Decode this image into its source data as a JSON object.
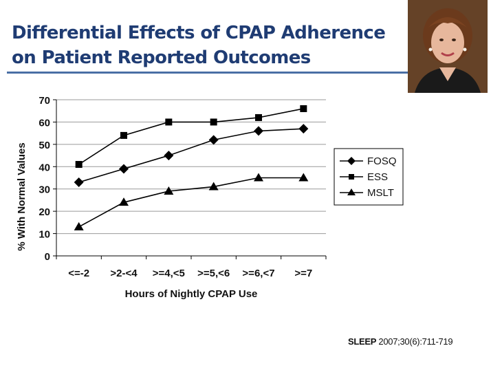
{
  "slide": {
    "title": "Differential Effects of CPAP Adherence on Patient Reported Outcomes",
    "citation_journal": "SLEEP",
    "citation_rest": " 2007;30(6):711-719"
  },
  "photo": {
    "icon": "portrait-photo",
    "description_colors": {
      "background": "#5a3a22",
      "hair": "#6b3a1c",
      "skin": "#e7b79c",
      "jacket": "#1a1a1a"
    }
  },
  "chart_data": {
    "type": "line",
    "categories": [
      "<=-2",
      ">2-<4",
      ">=4,<5",
      ">=5,<6",
      ">=6,<7",
      ">=7"
    ],
    "series": [
      {
        "name": "FOSQ",
        "marker": "diamond",
        "values": [
          33,
          39,
          45,
          52,
          56,
          57
        ]
      },
      {
        "name": "ESS",
        "marker": "square",
        "values": [
          41,
          54,
          60,
          60,
          62,
          66
        ]
      },
      {
        "name": "MSLT",
        "marker": "triangle",
        "values": [
          13,
          24,
          29,
          31,
          35,
          35
        ]
      }
    ],
    "xlabel": "Hours of Nightly CPAP Use",
    "ylabel": "% With Normal Values",
    "ylim": [
      0,
      70
    ],
    "yticks": [
      0,
      10,
      20,
      30,
      40,
      50,
      60,
      70
    ],
    "grid": true,
    "legend": "right",
    "line_color": "#000000",
    "grid_color": "#999999"
  }
}
